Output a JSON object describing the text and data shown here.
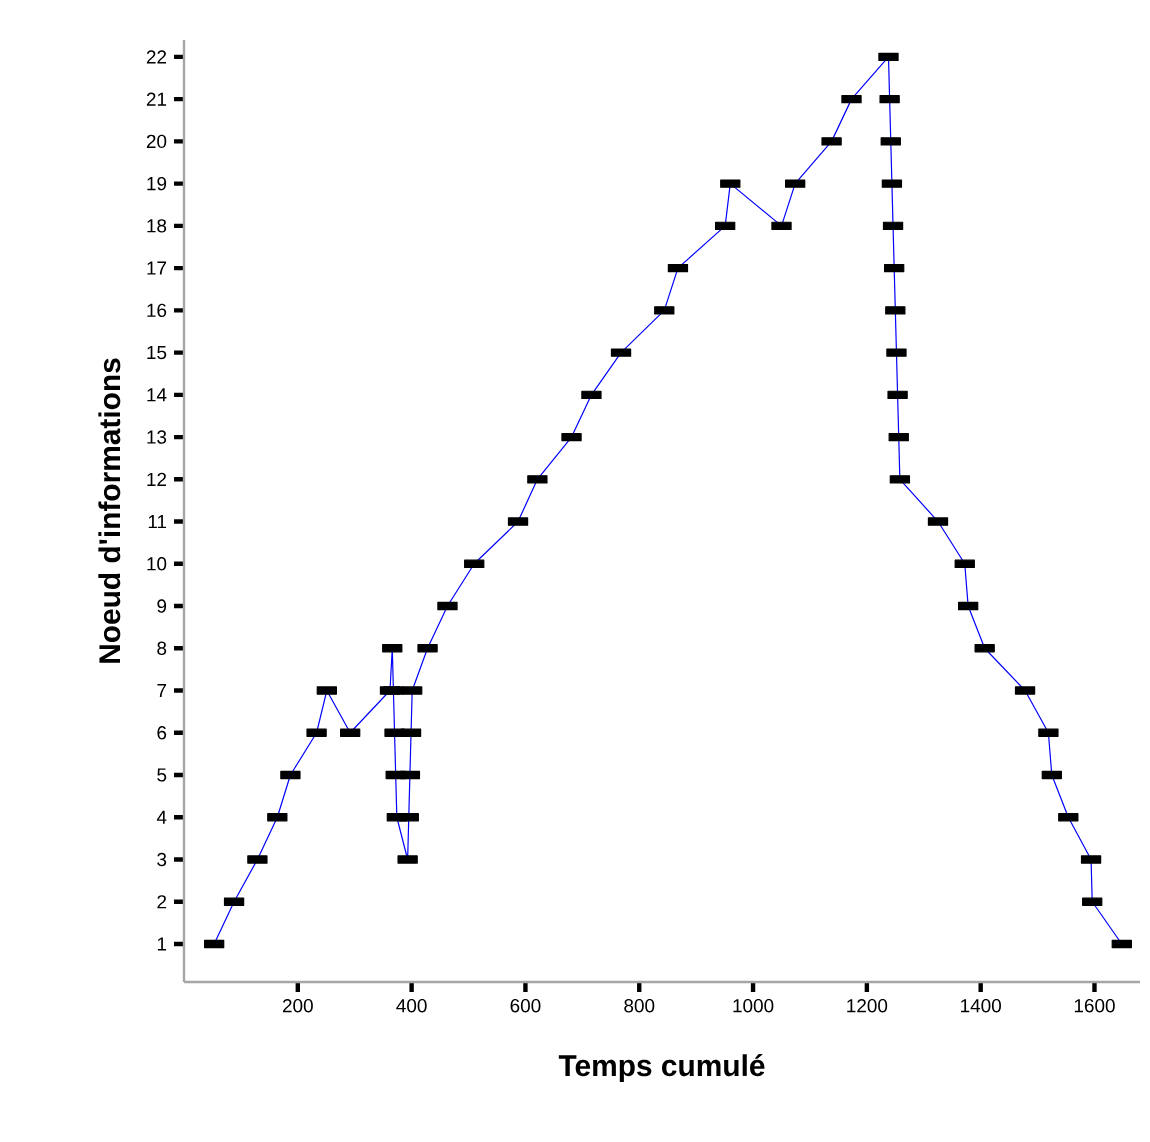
{
  "chart_data": {
    "type": "line",
    "xlabel": "Temps cumulé",
    "ylabel": "Noeud d'informations",
    "x": [
      53,
      88,
      129,
      164,
      187,
      233,
      251,
      292,
      362,
      366,
      368,
      370,
      372,
      374,
      393,
      395,
      397,
      399,
      401,
      428,
      463,
      510,
      587,
      621,
      681,
      716,
      768,
      844,
      868,
      951,
      960,
      1050,
      1074,
      1138,
      1173,
      1238,
      1240,
      1242,
      1244,
      1246,
      1248,
      1250,
      1252,
      1254,
      1256,
      1258,
      1325,
      1372,
      1378,
      1407,
      1478,
      1519,
      1525,
      1554,
      1594,
      1596,
      1648
    ],
    "series": [
      {
        "color": "#0000ff",
        "values": [
          1,
          2,
          3,
          4,
          5,
          6,
          7,
          6,
          7,
          8,
          7,
          6,
          5,
          4,
          3,
          4,
          5,
          6,
          7,
          8,
          9,
          10,
          11,
          12,
          13,
          14,
          15,
          16,
          17,
          18,
          19,
          18,
          19,
          20,
          21,
          22,
          21,
          20,
          19,
          18,
          17,
          16,
          15,
          14,
          13,
          12,
          11,
          10,
          9,
          8,
          7,
          6,
          5,
          4,
          3,
          2,
          1
        ]
      }
    ],
    "xlim": [
      0,
      1680
    ],
    "ylim": [
      0.1,
      22.4
    ],
    "xticks": [
      200,
      400,
      600,
      800,
      1000,
      1200,
      1400,
      1600
    ],
    "yticks": [
      1,
      2,
      3,
      4,
      5,
      6,
      7,
      8,
      9,
      10,
      11,
      12,
      13,
      14,
      15,
      16,
      17,
      18,
      19,
      20,
      21,
      22
    ],
    "marker": "square",
    "line_style": "solid"
  }
}
